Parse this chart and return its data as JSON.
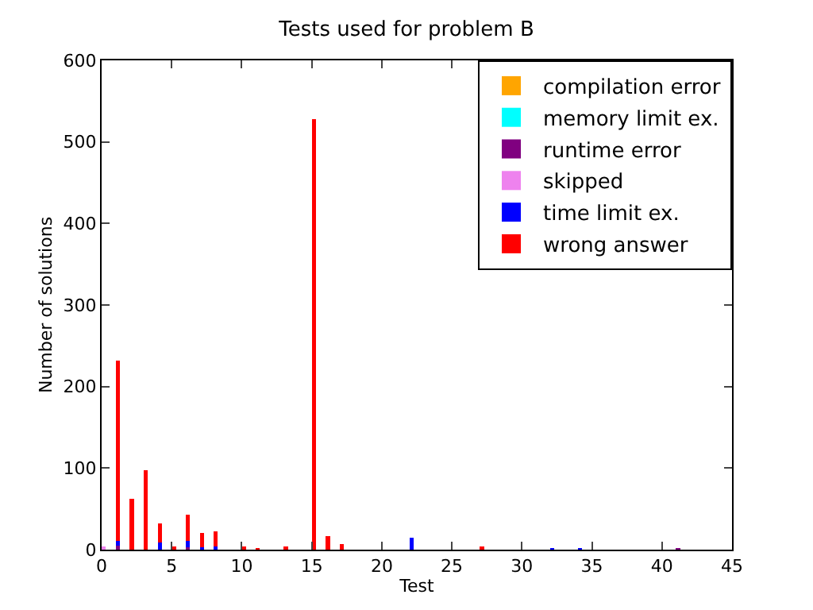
{
  "chart_data": {
    "type": "bar",
    "stacked": true,
    "title": "Tests used for problem B",
    "xlabel": "Test",
    "ylabel": "Number of solutions",
    "x": [
      0,
      1,
      2,
      3,
      4,
      5,
      6,
      7,
      8,
      10,
      11,
      13,
      15,
      16,
      17,
      22,
      27,
      32,
      34,
      41
    ],
    "series": [
      {
        "name": "compilation error",
        "color": "#ffa500",
        "values": [
          null,
          0,
          0,
          0,
          0,
          0,
          0,
          0,
          0,
          0,
          0,
          0,
          0,
          0,
          0,
          0,
          0,
          0,
          0,
          0
        ]
      },
      {
        "name": "memory limit ex.",
        "color": "#00ffff",
        "values": [
          0,
          0,
          0,
          0,
          0,
          0,
          0,
          0,
          0,
          0,
          0,
          0,
          0,
          0,
          0,
          0,
          0,
          0,
          0,
          0
        ]
      },
      {
        "name": "runtime error",
        "color": "#800080",
        "values": [
          0,
          5,
          0,
          0,
          0,
          0,
          3,
          0,
          0,
          0,
          0,
          0,
          null,
          0,
          0,
          0,
          0,
          0,
          0,
          1
        ]
      },
      {
        "name": "skipped",
        "color": "#ee82ee",
        "values": [
          4,
          0,
          0,
          0,
          0,
          0,
          0,
          0,
          0,
          0,
          0,
          0,
          0,
          0,
          0,
          0,
          0,
          0,
          0,
          0
        ]
      },
      {
        "name": "time limit ex.",
        "color": "#0000ff",
        "values": [
          0,
          6,
          0,
          0,
          9,
          0,
          8,
          3,
          4,
          0,
          0,
          0,
          0,
          0,
          0,
          15,
          0,
          1,
          1,
          0
        ]
      },
      {
        "name": "wrong answer",
        "color": "#ff0000",
        "values": [
          0,
          221,
          62,
          97,
          23,
          3,
          32,
          17,
          18,
          4,
          1,
          2,
          528,
          17,
          7,
          0,
          3,
          0,
          0,
          0
        ]
      }
    ],
    "xlim": [
      0,
      45
    ],
    "xticks": [
      0,
      5,
      10,
      15,
      20,
      25,
      30,
      35,
      40,
      45
    ],
    "ylim": [
      0,
      600
    ],
    "yticks": [
      0,
      100,
      200,
      300,
      400,
      500,
      600
    ],
    "legend": "top right"
  }
}
